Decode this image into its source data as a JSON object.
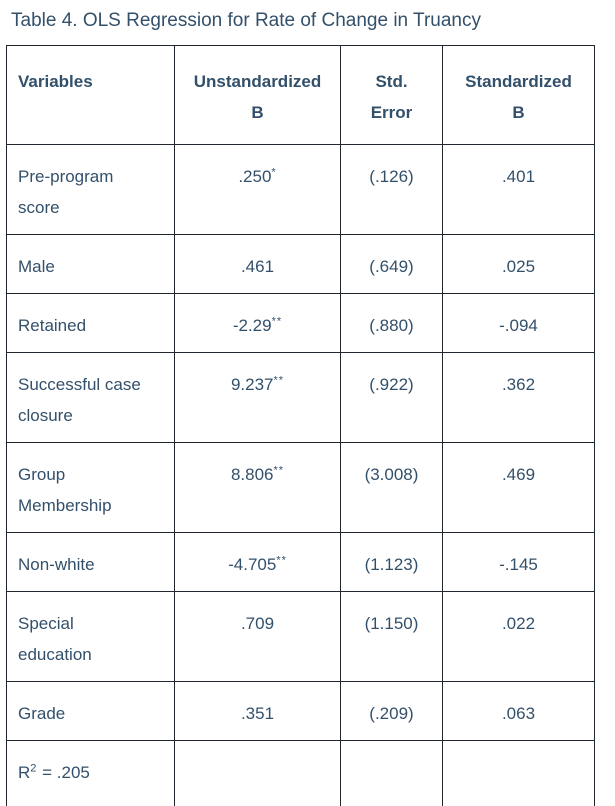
{
  "title": "Table 4. OLS Regression for Rate of Change in Truancy",
  "table": {
    "columns": [
      "Variables",
      "Unstandardized B",
      "Std. Error",
      "Standardized B"
    ],
    "rows": [
      {
        "variable": "Pre-program score",
        "unstandardized_b": ".250",
        "significance": "*",
        "std_error": "(.126)",
        "standardized_b": ".401"
      },
      {
        "variable": "Male",
        "unstandardized_b": ".461",
        "significance": "",
        "std_error": "(.649)",
        "standardized_b": ".025"
      },
      {
        "variable": "Retained",
        "unstandardized_b": "-2.29",
        "significance": "**",
        "std_error": "(.880)",
        "standardized_b": "-.094"
      },
      {
        "variable": "Successful case closure",
        "unstandardized_b": "9.237",
        "significance": "**",
        "std_error": "(.922)",
        "standardized_b": ".362"
      },
      {
        "variable": "Group Membership",
        "unstandardized_b": "8.806",
        "significance": "**",
        "std_error": "(3.008)",
        "standardized_b": ".469"
      },
      {
        "variable": "Non-white",
        "unstandardized_b": "-4.705",
        "significance": "**",
        "std_error": "(1.123)",
        "standardized_b": "-.145"
      },
      {
        "variable": "Special education",
        "unstandardized_b": ".709",
        "significance": "",
        "std_error": "(1.150)",
        "standardized_b": ".022"
      },
      {
        "variable": "Grade",
        "unstandardized_b": ".351",
        "significance": "",
        "std_error": "(.209)",
        "standardized_b": ".063"
      }
    ],
    "footer": {
      "r2_base": "R",
      "r2_sup": "2",
      "r2_rest": " = .205"
    }
  },
  "colors": {
    "text": "#33506b",
    "border": "#20272e",
    "background": "#ffffff"
  }
}
